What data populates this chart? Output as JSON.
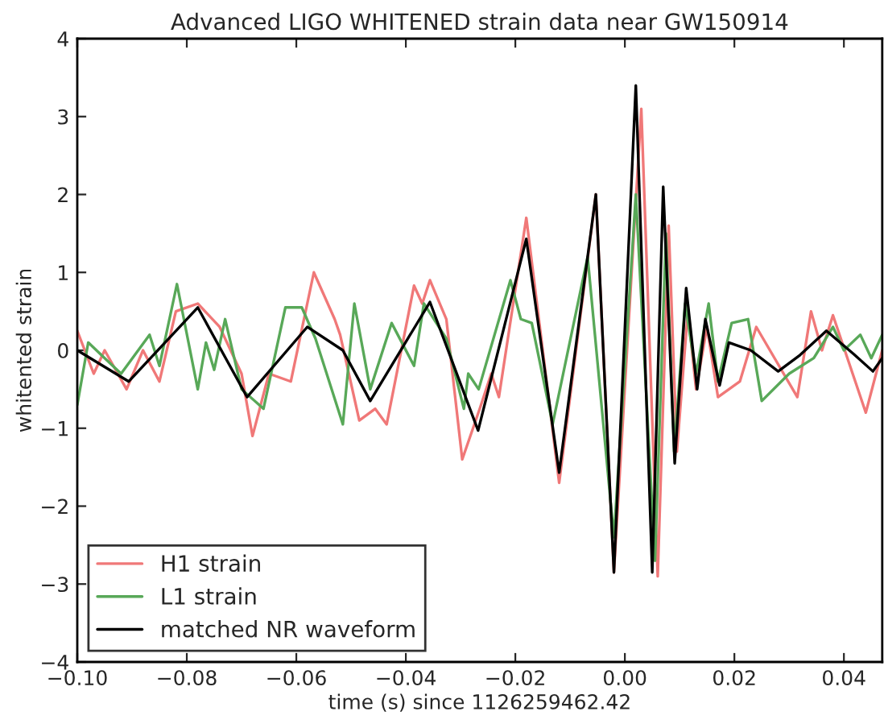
{
  "chart_data": {
    "type": "line",
    "title": "Advanced LIGO WHITENED strain data near GW150914",
    "xlabel": "time (s) since 1126259462.42",
    "ylabel": "whitented strain",
    "xlim": [
      -0.1,
      0.047
    ],
    "ylim": [
      -4,
      4
    ],
    "xticks": [
      {
        "value": -0.1,
        "label": "−0.10"
      },
      {
        "value": -0.08,
        "label": "−0.08"
      },
      {
        "value": -0.06,
        "label": "−0.06"
      },
      {
        "value": -0.04,
        "label": "−0.04"
      },
      {
        "value": -0.02,
        "label": "−0.02"
      },
      {
        "value": 0,
        "label": "0.00"
      },
      {
        "value": 0.02,
        "label": "0.02"
      },
      {
        "value": 0.04,
        "label": "0.04"
      }
    ],
    "yticks": [
      {
        "value": -4,
        "label": "−4"
      },
      {
        "value": -3,
        "label": "−3"
      },
      {
        "value": -2,
        "label": "−2"
      },
      {
        "value": -1,
        "label": "−1"
      },
      0,
      1,
      2,
      3,
      4
    ],
    "grid": false,
    "legend": "bottom left",
    "marker": "none",
    "line_style": "solid",
    "series": [
      {
        "name": "H1 strain",
        "color": "#f07878",
        "x": [
          -0.1,
          -0.097,
          -0.095,
          -0.091,
          -0.088,
          -0.085,
          -0.082,
          -0.078,
          -0.074,
          -0.07,
          -0.068,
          -0.065,
          -0.061,
          -0.0568,
          -0.053,
          -0.052,
          -0.0485,
          -0.0456,
          -0.0435,
          -0.0385,
          -0.037,
          -0.0356,
          -0.0326,
          -0.0297,
          -0.0265,
          -0.0244,
          -0.023,
          -0.018,
          -0.012,
          -0.0053,
          -0.002,
          0.003,
          0.006,
          0.008,
          0.0095,
          0.0115,
          0.013,
          0.015,
          0.017,
          0.021,
          0.024,
          0.0315,
          0.034,
          0.036,
          0.038,
          0.044,
          0.047
        ],
        "values": [
          0.25,
          -0.3,
          0.0,
          -0.5,
          0.0,
          -0.4,
          0.5,
          0.6,
          0.3,
          -0.3,
          -1.1,
          -0.3,
          -0.4,
          1.0,
          0.4,
          0.2,
          -0.9,
          -0.75,
          -0.95,
          0.83,
          0.6,
          0.9,
          0.4,
          -1.4,
          -0.75,
          -0.3,
          -0.6,
          1.7,
          -1.7,
          2.0,
          -2.85,
          3.1,
          -2.9,
          1.6,
          -1.3,
          0.5,
          -0.5,
          0.3,
          -0.6,
          -0.4,
          0.3,
          -0.6,
          0.5,
          0.0,
          0.45,
          -0.8,
          0.0
        ]
      },
      {
        "name": "L1 strain",
        "color": "#58a858",
        "x": [
          -0.1,
          -0.098,
          -0.095,
          -0.092,
          -0.0868,
          -0.085,
          -0.0818,
          -0.078,
          -0.0765,
          -0.075,
          -0.073,
          -0.07,
          -0.066,
          -0.062,
          -0.059,
          -0.0565,
          -0.0515,
          -0.0494,
          -0.0465,
          -0.0426,
          -0.0385,
          -0.0367,
          -0.0326,
          -0.0294,
          -0.0286,
          -0.0267,
          -0.0209,
          -0.019,
          -0.017,
          -0.0132,
          -0.0068,
          -0.002,
          0.002,
          0.0055,
          0.0075,
          0.009,
          0.011,
          0.013,
          0.0153,
          0.017,
          0.0195,
          0.0225,
          0.025,
          0.03,
          0.0345,
          0.038,
          0.04,
          0.043,
          0.045,
          0.047
        ],
        "values": [
          -0.7,
          0.1,
          -0.1,
          -0.3,
          0.2,
          -0.2,
          0.85,
          -0.5,
          0.1,
          -0.25,
          0.4,
          -0.5,
          -0.75,
          0.55,
          0.55,
          0.15,
          -0.95,
          0.6,
          -0.5,
          0.35,
          -0.2,
          0.6,
          0.15,
          -0.75,
          -0.3,
          -0.5,
          0.9,
          0.4,
          0.35,
          -0.95,
          1.2,
          -2.4,
          2.0,
          -2.7,
          1.5,
          -1.3,
          0.6,
          -0.3,
          0.6,
          -0.4,
          0.35,
          0.4,
          -0.65,
          -0.3,
          -0.1,
          0.3,
          0.0,
          0.2,
          -0.1,
          0.2
        ]
      },
      {
        "name": "matched NR waveform",
        "color": "#000000",
        "x": [
          -0.1,
          -0.0906,
          -0.078,
          -0.069,
          -0.058,
          -0.0515,
          -0.0465,
          -0.0356,
          -0.0268,
          -0.018,
          -0.012,
          -0.0053,
          -0.002,
          0.002,
          0.005,
          0.007,
          0.0091,
          0.0112,
          0.0132,
          0.0147,
          0.0173,
          0.019,
          0.023,
          0.028,
          0.032,
          0.0368,
          0.0418,
          0.0453,
          0.047
        ],
        "values": [
          0.0,
          -0.4,
          0.55,
          -0.6,
          0.3,
          0.0,
          -0.65,
          0.62,
          -1.03,
          1.43,
          -1.57,
          2.0,
          -2.85,
          3.4,
          -2.85,
          2.1,
          -1.45,
          0.8,
          -0.5,
          0.4,
          -0.45,
          0.1,
          0.0,
          -0.27,
          -0.06,
          0.25,
          -0.05,
          -0.27,
          -0.1
        ]
      }
    ]
  }
}
